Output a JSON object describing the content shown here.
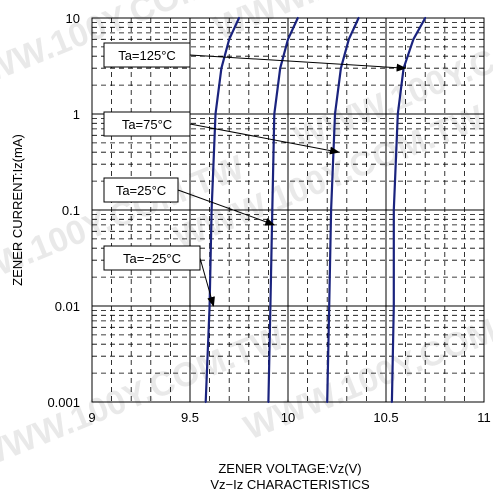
{
  "chart_data": {
    "type": "line",
    "title": "Vz−Iz CHARACTERISTICS",
    "xlabel": "ZENER VOLTAGE:Vz(V)",
    "ylabel": "ZENER CURRENT:Iz(mA)",
    "xlim": [
      9,
      11
    ],
    "ylim": [
      0.001,
      10
    ],
    "yscale": "log",
    "grid": true,
    "x_ticks": [
      "9",
      "9.5",
      "10",
      "10.5",
      "11"
    ],
    "y_ticks": [
      "0.001",
      "0.01",
      "0.1",
      "1",
      "10"
    ],
    "series": [
      {
        "name": "Ta=−25°C",
        "points": [
          [
            9.58,
            0.001
          ],
          [
            9.6,
            0.01
          ],
          [
            9.61,
            0.1
          ],
          [
            9.63,
            1
          ],
          [
            9.66,
            3
          ],
          [
            9.7,
            6
          ],
          [
            9.75,
            10
          ]
        ]
      },
      {
        "name": "Ta=25°C",
        "points": [
          [
            9.9,
            0.001
          ],
          [
            9.91,
            0.01
          ],
          [
            9.92,
            0.1
          ],
          [
            9.93,
            1
          ],
          [
            9.96,
            3
          ],
          [
            10.0,
            6
          ],
          [
            10.05,
            10
          ]
        ]
      },
      {
        "name": "Ta=75°C",
        "points": [
          [
            10.2,
            0.001
          ],
          [
            10.21,
            0.01
          ],
          [
            10.22,
            0.1
          ],
          [
            10.24,
            1
          ],
          [
            10.27,
            3
          ],
          [
            10.31,
            6
          ],
          [
            10.36,
            10
          ]
        ]
      },
      {
        "name": "Ta=125°C",
        "points": [
          [
            10.53,
            0.001
          ],
          [
            10.54,
            0.01
          ],
          [
            10.54,
            0.1
          ],
          [
            10.56,
            1
          ],
          [
            10.59,
            3
          ],
          [
            10.64,
            6
          ],
          [
            10.7,
            10
          ]
        ]
      }
    ],
    "annotations": [
      {
        "label": "Ta=125°C",
        "target": [
          10.6,
          3
        ]
      },
      {
        "label": "Ta=75°C",
        "target": [
          10.26,
          0.4
        ]
      },
      {
        "label": "Ta=25°C",
        "target": [
          9.93,
          0.07
        ]
      },
      {
        "label": "Ta=−25°C",
        "target": [
          9.62,
          0.01
        ]
      }
    ]
  },
  "colors": {
    "curve": "#1a237e",
    "grid_dashed": "#000000",
    "grid_solid": "#000000",
    "callout_fill": "#ffffff"
  },
  "watermark": {
    "text": "WWW.100Y.COM.TW"
  }
}
